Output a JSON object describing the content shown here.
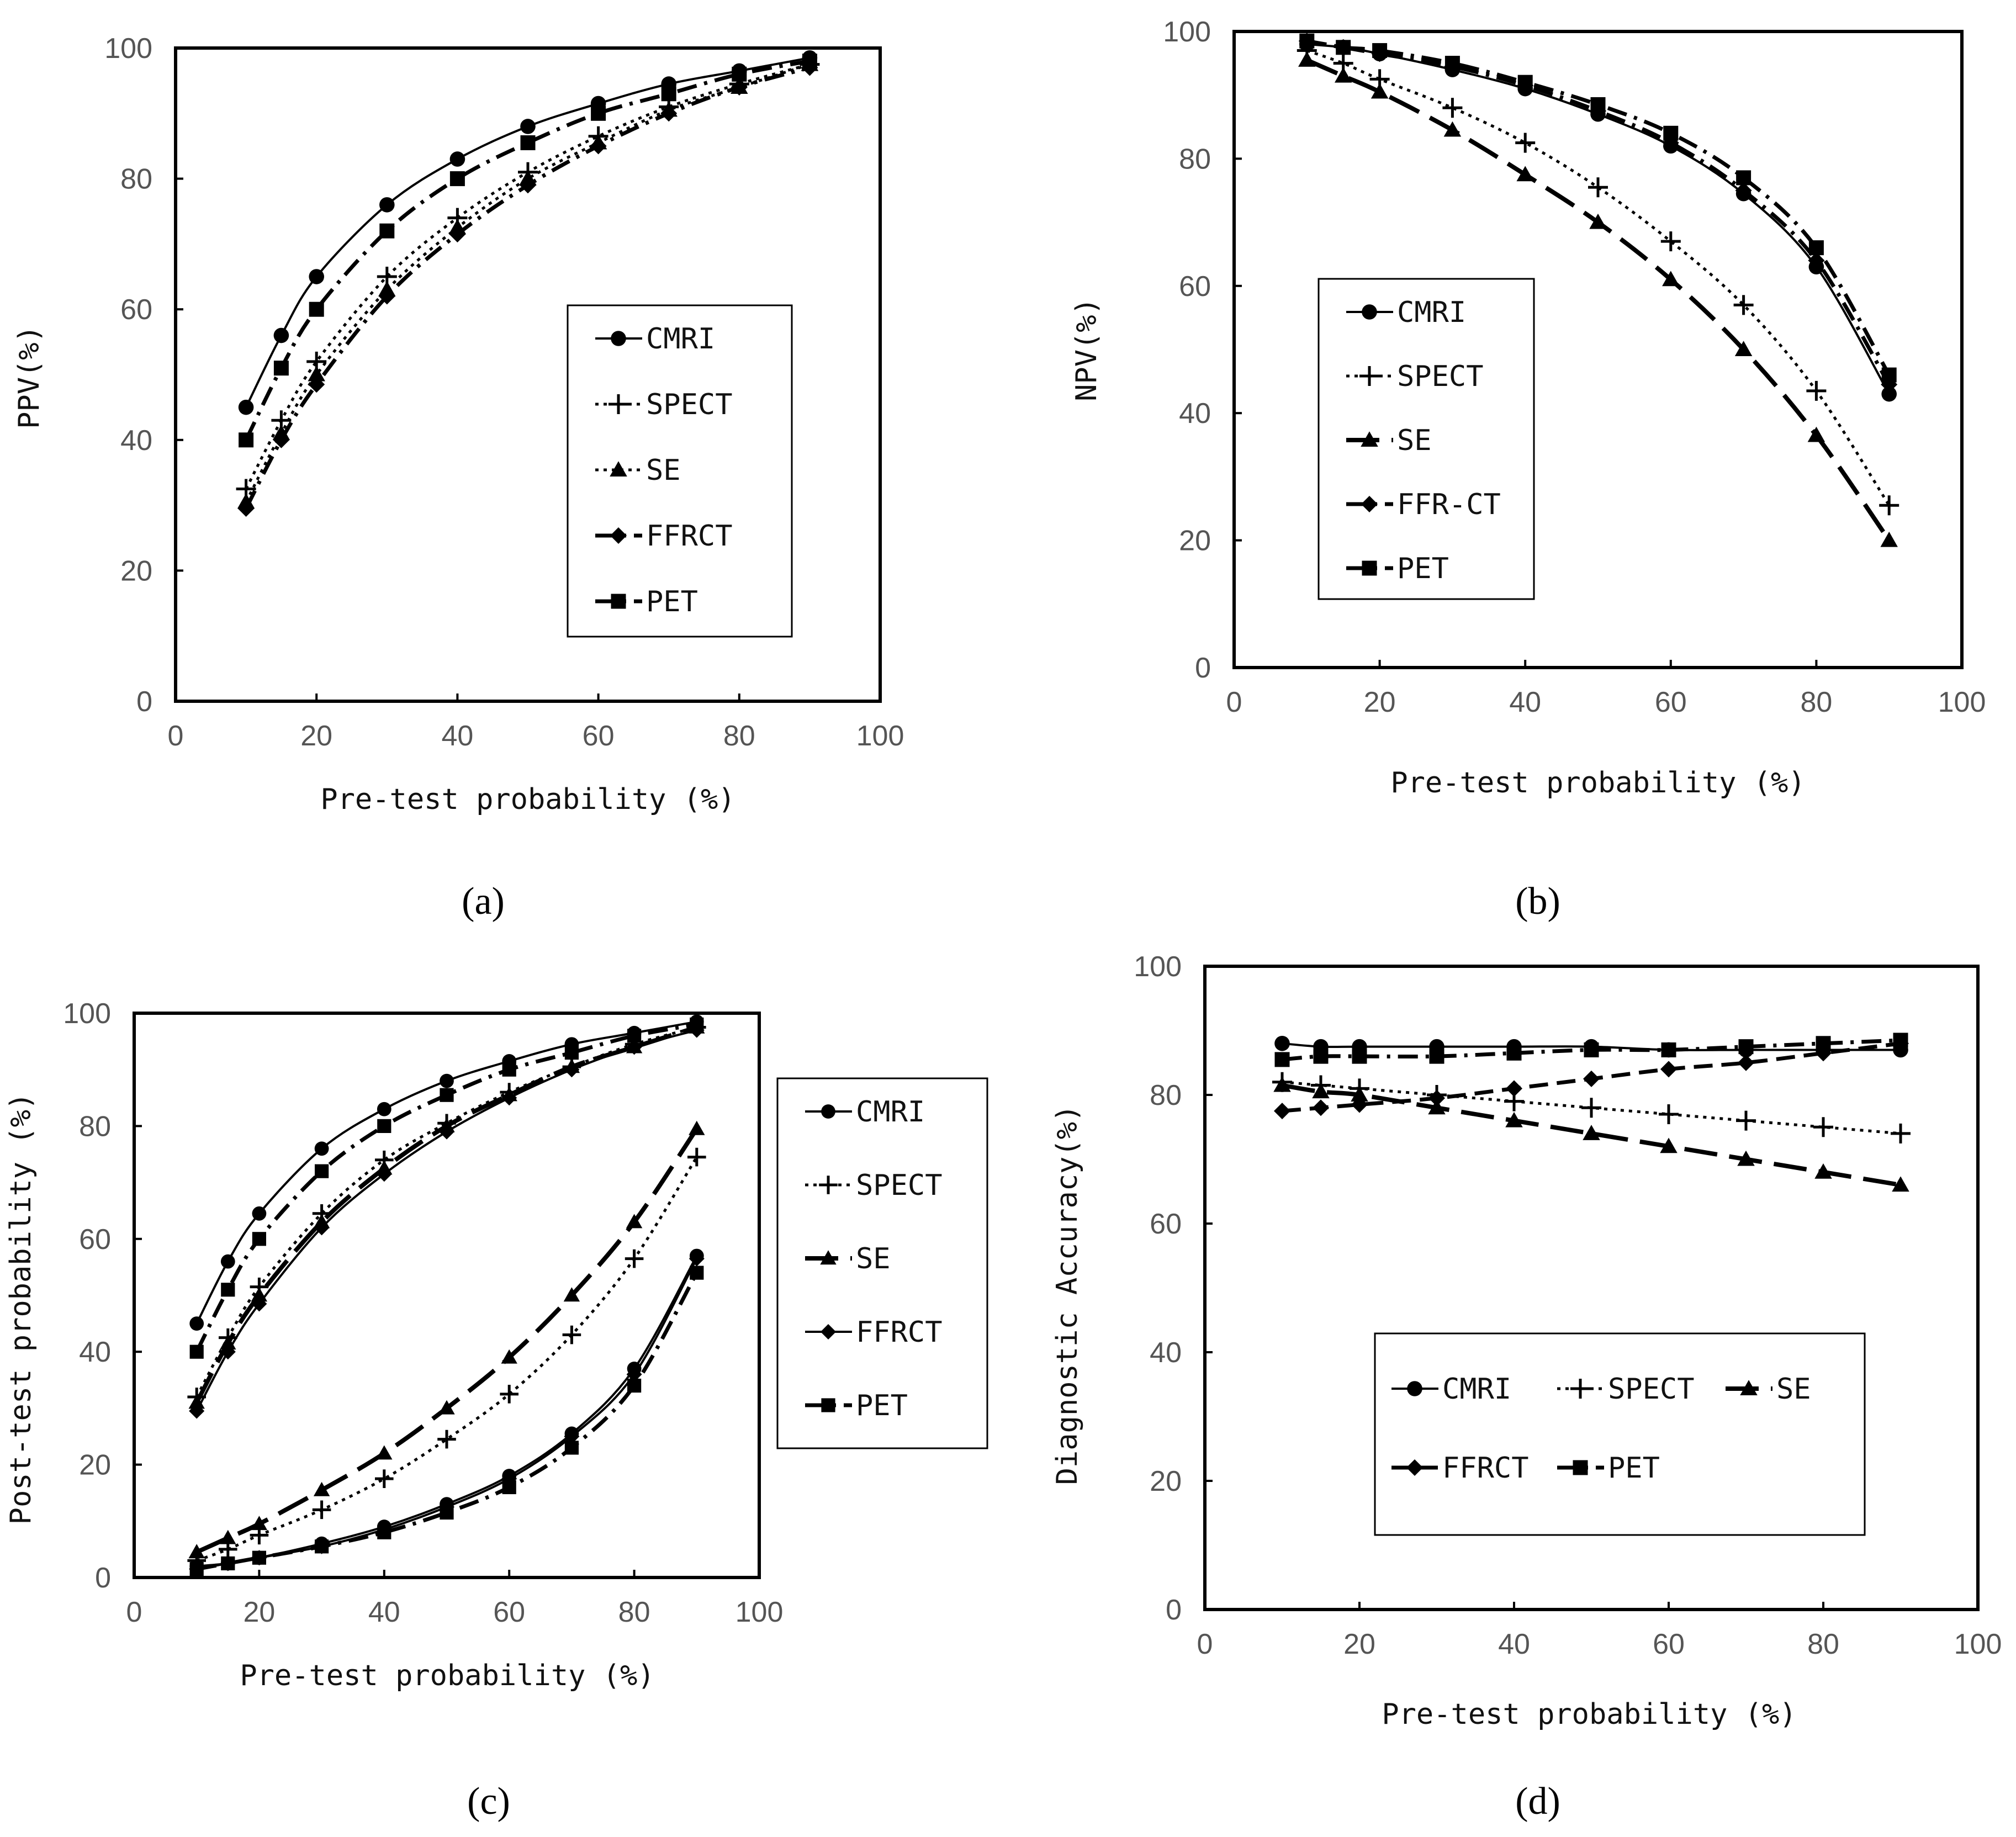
{
  "chart_data": [
    {
      "type": "line",
      "panel": "a",
      "caption": "(a)",
      "xlabel": "Pre-test probability (%)",
      "ylabel": "PPV(%)",
      "xlim": [
        0,
        100
      ],
      "ylim": [
        0,
        100
      ],
      "xticks": [
        "0",
        "20",
        "40",
        "60",
        "80",
        "100"
      ],
      "yticks": [
        "0",
        "20",
        "40",
        "60",
        "80",
        "100"
      ],
      "legend_position": "right-center",
      "series": [
        {
          "name": "CMRI",
          "marker": "circle",
          "dash": "solid",
          "x": [
            10,
            15,
            20,
            30,
            40,
            50,
            60,
            70,
            80,
            90
          ],
          "y": [
            45,
            56,
            65,
            76,
            83,
            88,
            91.5,
            94.5,
            96.5,
            98.5
          ]
        },
        {
          "name": "SPECT",
          "marker": "plus",
          "dash": "dot",
          "x": [
            10,
            15,
            20,
            30,
            40,
            50,
            60,
            70,
            80,
            90
          ],
          "y": [
            32.5,
            43,
            52,
            65,
            74,
            81,
            86.5,
            91,
            94.5,
            97.5
          ]
        },
        {
          "name": "SE",
          "marker": "triangle",
          "dash": "dot",
          "x": [
            10,
            15,
            20,
            30,
            40,
            50,
            60,
            70,
            80,
            90
          ],
          "y": [
            30.5,
            41,
            50,
            63,
            72.5,
            80,
            85.5,
            90.5,
            94,
            97.5
          ]
        },
        {
          "name": "FFRCT",
          "marker": "diamond",
          "dash": "dashdot",
          "x": [
            10,
            15,
            20,
            30,
            40,
            50,
            60,
            70,
            80,
            90
          ],
          "y": [
            29.5,
            40,
            48.5,
            62,
            71.5,
            79,
            85,
            90,
            94,
            97
          ]
        },
        {
          "name": "PET",
          "marker": "square",
          "dash": "dashdot",
          "x": [
            10,
            15,
            20,
            30,
            40,
            50,
            60,
            70,
            80,
            90
          ],
          "y": [
            40,
            51,
            60,
            72,
            80,
            85.5,
            90,
            93,
            96,
            98
          ]
        }
      ]
    },
    {
      "type": "line",
      "panel": "b",
      "caption": "(b)",
      "xlabel": "Pre-test probability (%)",
      "ylabel": "NPV(%)",
      "xlim": [
        0,
        100
      ],
      "ylim": [
        0,
        100
      ],
      "xticks": [
        "0",
        "20",
        "40",
        "60",
        "80",
        "100"
      ],
      "yticks": [
        "0",
        "20",
        "40",
        "60",
        "80",
        "100"
      ],
      "legend_position": "left-center",
      "series": [
        {
          "name": "CMRI",
          "marker": "circle",
          "dash": "solid",
          "x": [
            10,
            15,
            20,
            30,
            40,
            50,
            60,
            70,
            80,
            90
          ],
          "y": [
            98,
            97.5,
            96.5,
            94,
            91,
            87,
            82,
            74.5,
            63,
            43
          ]
        },
        {
          "name": "SPECT",
          "marker": "plus",
          "dash": "dot",
          "x": [
            10,
            15,
            20,
            30,
            40,
            50,
            60,
            70,
            80,
            90
          ],
          "y": [
            97,
            95,
            92.5,
            88,
            82.5,
            75.5,
            67,
            57,
            43.5,
            25.5
          ]
        },
        {
          "name": "SE",
          "marker": "triangle",
          "dash": "longdash",
          "x": [
            10,
            15,
            20,
            30,
            40,
            50,
            60,
            70,
            80,
            90
          ],
          "y": [
            95.5,
            93,
            90.5,
            84.5,
            77.5,
            70,
            61,
            50,
            36.5,
            20
          ]
        },
        {
          "name": "FFR-CT",
          "marker": "diamond",
          "dash": "dashdot",
          "x": [
            10,
            15,
            20,
            30,
            40,
            50,
            60,
            70,
            80,
            90
          ],
          "y": [
            98.5,
            97.5,
            96.5,
            94.5,
            91.5,
            87.5,
            82.5,
            75,
            64,
            44.5
          ]
        },
        {
          "name": "PET",
          "marker": "square",
          "dash": "dashdot",
          "x": [
            10,
            15,
            20,
            30,
            40,
            50,
            60,
            70,
            80,
            90
          ],
          "y": [
            98.5,
            97.5,
            97,
            95,
            92,
            88.5,
            84,
            77,
            66,
            46
          ]
        }
      ]
    },
    {
      "type": "line",
      "panel": "c",
      "caption": "(c)",
      "xlabel": "Pre-test probability (%)",
      "ylabel": "Post-test probability (%)",
      "xlim": [
        0,
        100
      ],
      "ylim": [
        0,
        100
      ],
      "xticks": [
        "0",
        "20",
        "40",
        "60",
        "80",
        "100"
      ],
      "yticks": [
        "0",
        "20",
        "40",
        "60",
        "80",
        "100"
      ],
      "legend_position": "right-outside",
      "series": [
        {
          "name": "CMRI",
          "marker": "circle",
          "dash": "solid",
          "x": [
            10,
            15,
            20,
            30,
            40,
            50,
            60,
            70,
            80,
            90
          ],
          "y": [
            45,
            56,
            64.5,
            76,
            83,
            88,
            91.5,
            94.5,
            96.5,
            98.5
          ]
        },
        {
          "name": "SPECT",
          "marker": "plus",
          "dash": "dot",
          "x": [
            10,
            15,
            20,
            30,
            40,
            50,
            60,
            70,
            80,
            90
          ],
          "y": [
            32,
            42.5,
            51.5,
            64.5,
            74,
            80.5,
            86,
            90.5,
            94.5,
            97.5
          ]
        },
        {
          "name": "SE",
          "marker": "triangle",
          "dash": "longdash",
          "x": [
            10,
            15,
            20,
            30,
            40,
            50,
            60,
            70,
            80,
            90
          ],
          "y": [
            31,
            41.5,
            50,
            63,
            72.5,
            80,
            85.5,
            90.5,
            94,
            97.5
          ]
        },
        {
          "name": "FFRCT",
          "marker": "diamond",
          "dash": "solid",
          "x": [
            10,
            15,
            20,
            30,
            40,
            50,
            60,
            70,
            80,
            90
          ],
          "y": [
            29.5,
            40,
            48.5,
            62,
            71.5,
            79,
            85,
            90,
            94,
            97
          ]
        },
        {
          "name": "PET",
          "marker": "square",
          "dash": "dashdot",
          "x": [
            10,
            15,
            20,
            30,
            40,
            50,
            60,
            70,
            80,
            90
          ],
          "y": [
            40,
            51,
            60,
            72,
            80,
            85.5,
            90,
            93,
            96,
            98
          ]
        },
        {
          "name": "CMRI",
          "marker": "circle",
          "dash": "solid",
          "x": [
            10,
            15,
            20,
            30,
            40,
            50,
            60,
            70,
            80,
            90
          ],
          "y": [
            2,
            2.5,
            3.5,
            6,
            9,
            13,
            18,
            25.5,
            37,
            57
          ]
        },
        {
          "name": "SPECT",
          "marker": "plus",
          "dash": "dot",
          "x": [
            10,
            15,
            20,
            30,
            40,
            50,
            60,
            70,
            80,
            90
          ],
          "y": [
            3,
            5,
            7.5,
            12,
            17.5,
            24.5,
            32.5,
            43,
            56.5,
            74.5
          ]
        },
        {
          "name": "SE",
          "marker": "triangle",
          "dash": "longdash",
          "x": [
            10,
            15,
            20,
            30,
            40,
            50,
            60,
            70,
            80,
            90
          ],
          "y": [
            4.5,
            7,
            9.5,
            15.5,
            22,
            30,
            39,
            50,
            63,
            79.5
          ]
        },
        {
          "name": "FFRCT",
          "marker": "diamond",
          "dash": "solid",
          "x": [
            10,
            15,
            20,
            30,
            40,
            50,
            60,
            70,
            80,
            90
          ],
          "y": [
            1.5,
            2.5,
            3.5,
            5.5,
            8.5,
            12.5,
            17.5,
            25,
            36,
            56.5
          ]
        },
        {
          "name": "PET",
          "marker": "square",
          "dash": "dashdot",
          "x": [
            10,
            15,
            20,
            30,
            40,
            50,
            60,
            70,
            80,
            90
          ],
          "y": [
            1.5,
            2.5,
            3.5,
            5.5,
            8,
            11.5,
            16,
            23,
            34,
            54
          ]
        }
      ]
    },
    {
      "type": "line",
      "panel": "d",
      "caption": "(d)",
      "xlabel": "Pre-test probability (%)",
      "ylabel": "Diagnostic Accuracy(%)",
      "xlim": [
        0,
        100
      ],
      "ylim": [
        0,
        100
      ],
      "xticks": [
        "0",
        "20",
        "40",
        "60",
        "80",
        "100"
      ],
      "yticks": [
        "0",
        "20",
        "40",
        "60",
        "80",
        "100"
      ],
      "legend_position": "center",
      "series": [
        {
          "name": "CMRI",
          "marker": "circle",
          "dash": "solid",
          "x": [
            10,
            15,
            20,
            30,
            40,
            50,
            60,
            70,
            80,
            90
          ],
          "y": [
            88,
            87.5,
            87.5,
            87.5,
            87.5,
            87.5,
            87,
            87,
            87,
            87
          ]
        },
        {
          "name": "SPECT",
          "marker": "plus",
          "dash": "dot",
          "x": [
            10,
            15,
            20,
            30,
            40,
            50,
            60,
            70,
            80,
            90
          ],
          "y": [
            82,
            81.5,
            81,
            80,
            79,
            78,
            77,
            76,
            75,
            74
          ]
        },
        {
          "name": "SE",
          "marker": "triangle",
          "dash": "longdash",
          "x": [
            10,
            15,
            20,
            30,
            40,
            50,
            60,
            70,
            80,
            90
          ],
          "y": [
            81.5,
            80.5,
            80,
            78,
            76,
            74,
            72,
            70,
            68,
            66
          ]
        },
        {
          "name": "FFRCT",
          "marker": "diamond",
          "dash": "dash",
          "x": [
            10,
            15,
            20,
            30,
            40,
            50,
            60,
            70,
            80,
            90
          ],
          "y": [
            77.5,
            78,
            78.5,
            79.5,
            81,
            82.5,
            84,
            85,
            86.5,
            88
          ]
        },
        {
          "name": "PET",
          "marker": "square",
          "dash": "dashdot",
          "x": [
            10,
            15,
            20,
            30,
            40,
            50,
            60,
            70,
            80,
            90
          ],
          "y": [
            85.5,
            86,
            86,
            86,
            86.5,
            87,
            87,
            87.5,
            88,
            88.5
          ]
        }
      ]
    }
  ]
}
